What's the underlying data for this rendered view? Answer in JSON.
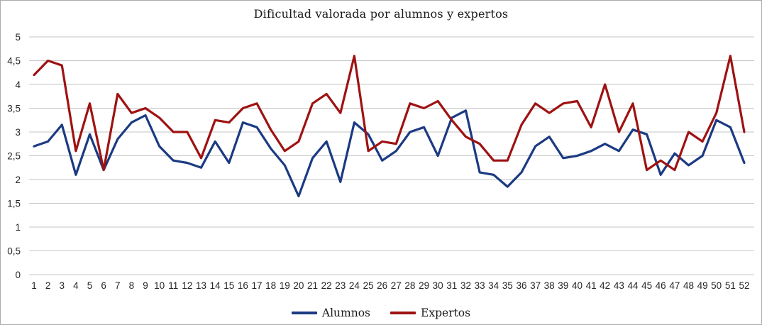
{
  "title": "Dificultad valorada por alumnos y expertos",
  "legend": {
    "items": [
      "Alumnos",
      "Expertos"
    ]
  },
  "chart_data": {
    "type": "line",
    "title": "Dificultad valorada por alumnos y expertos",
    "xlabel": "",
    "ylabel": "",
    "ylim": [
      0,
      5
    ],
    "y_tick_step": 0.5,
    "grid": "horizontal",
    "grid_color": "#c6c6c6",
    "axis_text_color": "#262626",
    "legend_position": "bottom",
    "y_ticks": [
      "5",
      "4,5",
      "4",
      "3,5",
      "3",
      "2,5",
      "2",
      "1,5",
      "1",
      "0,5",
      "0"
    ],
    "x_labels": [
      "1",
      "2",
      "3",
      "4",
      "5",
      "6",
      "7",
      "8",
      "9",
      "10",
      "11",
      "12",
      "13",
      "14",
      "15",
      "16",
      "17",
      "18",
      "19",
      "20",
      "21",
      "22",
      "23",
      "24",
      "25",
      "26",
      "27",
      "28",
      "29",
      "30",
      "31",
      "32",
      "33",
      "34",
      "35",
      "36",
      "37",
      "38",
      "39",
      "40",
      "41",
      "42",
      "43",
      "44",
      "45",
      "46",
      "47",
      "48",
      "49",
      "50",
      "51",
      "52"
    ],
    "series": [
      {
        "name": "Alumnos",
        "color": "#1b3a82",
        "values": [
          2.7,
          2.8,
          3.15,
          2.1,
          2.95,
          2.2,
          2.85,
          3.2,
          3.35,
          2.7,
          2.4,
          2.35,
          2.25,
          2.8,
          2.35,
          3.2,
          3.1,
          2.65,
          2.3,
          1.65,
          2.45,
          2.8,
          1.95,
          3.2,
          2.95,
          2.4,
          2.6,
          3.0,
          3.1,
          2.5,
          3.3,
          3.45,
          2.15,
          2.1,
          1.85,
          2.15,
          2.7,
          2.9,
          2.45,
          2.5,
          2.6,
          2.75,
          2.6,
          3.05,
          2.95,
          2.1,
          2.55,
          2.3,
          2.5,
          3.25,
          3.1,
          2.35
        ]
      },
      {
        "name": "Expertos",
        "color": "#9e1212",
        "values": [
          4.2,
          4.5,
          4.4,
          2.6,
          3.6,
          2.2,
          3.8,
          3.4,
          3.5,
          3.3,
          3.0,
          3.0,
          2.45,
          3.25,
          3.2,
          3.5,
          3.6,
          3.05,
          2.6,
          2.8,
          3.6,
          3.8,
          3.4,
          4.6,
          2.6,
          2.8,
          2.75,
          3.6,
          3.5,
          3.65,
          3.25,
          2.9,
          2.75,
          2.4,
          2.4,
          3.15,
          3.6,
          3.4,
          3.6,
          3.65,
          3.1,
          4.0,
          3.0,
          3.6,
          2.2,
          2.4,
          2.2,
          3.0,
          2.8,
          3.4,
          4.6,
          3.0
        ]
      }
    ]
  }
}
